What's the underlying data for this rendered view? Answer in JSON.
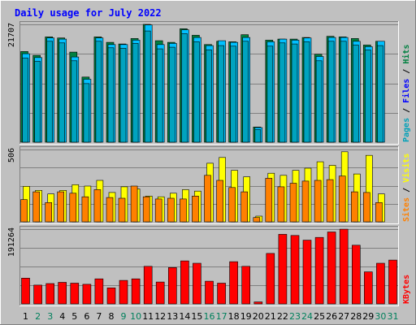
{
  "chart_data": {
    "type": "bar",
    "title": "Daily usage for July 2022",
    "days": [
      "1",
      "2",
      "3",
      "4",
      "5",
      "6",
      "7",
      "8",
      "9",
      "10",
      "11",
      "12",
      "13",
      "14",
      "15",
      "16",
      "17",
      "18",
      "19",
      "20",
      "21",
      "22",
      "23",
      "24",
      "25",
      "26",
      "27",
      "28",
      "29",
      "30",
      "31"
    ],
    "weekend_days": [
      "2",
      "3",
      "9",
      "10",
      "16",
      "17",
      "23",
      "24",
      "30",
      "31"
    ],
    "colors": {
      "hits": "#008040",
      "files": "#00c0ff",
      "pages": "#00a0b8",
      "visits": "#ffff00",
      "sites": "#ff8000",
      "kbytes": "#ff0000",
      "title": "#0000ff",
      "day_label": "#000000",
      "weekend_label": "#00805c"
    },
    "panels": [
      {
        "id": "hits",
        "max_label": "21707",
        "ymax": 21707,
        "labels": [
          {
            "text": "Pages",
            "color": "#00a0b8"
          },
          {
            "text": " / ",
            "color": "#000000"
          },
          {
            "text": "Files",
            "color": "#0000ff"
          },
          {
            "text": " / ",
            "color": "#000000"
          },
          {
            "text": "Hits",
            "color": "#008040"
          }
        ],
        "series": [
          {
            "name": "Hits",
            "color": "#008040",
            "values": [
              16700,
              16000,
              19400,
              19200,
              16600,
              12000,
              19400,
              18400,
              18100,
              19100,
              21700,
              18700,
              18400,
              20900,
              19700,
              18000,
              18600,
              18500,
              19800,
              2800,
              18800,
              19000,
              19000,
              19300,
              16200,
              19500,
              19400,
              19100,
              17900,
              18600,
              0
            ]
          },
          {
            "name": "Files",
            "color": "#00c0ff",
            "values": [
              16300,
              15600,
              19200,
              19000,
              15700,
              11600,
              19200,
              18000,
              18000,
              18800,
              21600,
              18000,
              18200,
              20700,
              19300,
              17800,
              18700,
              18400,
              19300,
              2700,
              18500,
              19000,
              18800,
              19200,
              15800,
              19300,
              19300,
              18600,
              17600,
              18600,
              0
            ]
          },
          {
            "name": "Pages",
            "color": "#00a0b8",
            "values": [
              15500,
              14900,
              18600,
              18300,
              15000,
              10800,
              18600,
              17400,
              17300,
              18200,
              20500,
              17200,
              17500,
              20000,
              18500,
              17000,
              17800,
              17700,
              18600,
              2300,
              17700,
              18300,
              18100,
              18500,
              15000,
              18600,
              18600,
              17900,
              17000,
              17800,
              0
            ]
          }
        ]
      },
      {
        "id": "visits",
        "max_label": "506",
        "ymax": 506,
        "labels": [
          {
            "text": "Sites",
            "color": "#ff8000"
          },
          {
            "text": " / ",
            "color": "#000000"
          },
          {
            "text": "Visits",
            "color": "#ffff00"
          }
        ],
        "series": [
          {
            "name": "Visits",
            "color": "#ffff00",
            "values": [
              248,
              220,
              195,
              220,
              260,
              250,
              290,
              205,
              245,
              230,
              180,
              175,
              200,
              225,
              215,
              410,
              450,
              360,
              315,
              40,
              340,
              325,
              360,
              375,
              420,
              395,
              490,
              335,
              465,
              195,
              0
            ]
          },
          {
            "name": "Sites",
            "color": "#ff8000",
            "values": [
              155,
              210,
              135,
              210,
              200,
              175,
              225,
              170,
              165,
              250,
              175,
              160,
              165,
              160,
              180,
              325,
              290,
              240,
              210,
              30,
              305,
              245,
              270,
              285,
              290,
              295,
              320,
              210,
              205,
              135,
              0
            ]
          }
        ]
      },
      {
        "id": "kbytes",
        "max_label": "191264",
        "ymax": 191264,
        "labels": [
          {
            "text": "KBytes",
            "color": "#ff0000"
          }
        ],
        "series": [
          {
            "name": "KBytes",
            "color": "#ff0000",
            "values": [
              66000,
              48000,
              52000,
              55000,
              53000,
              50000,
              64000,
              41000,
              60000,
              64000,
              96000,
              56000,
              93000,
              110000,
              104000,
              58000,
              53000,
              108000,
              96000,
              5000,
              129000,
              178000,
              175000,
              163000,
              170000,
              184000,
              191000,
              150000,
              82000,
              104000,
              112000
            ]
          }
        ]
      }
    ]
  }
}
